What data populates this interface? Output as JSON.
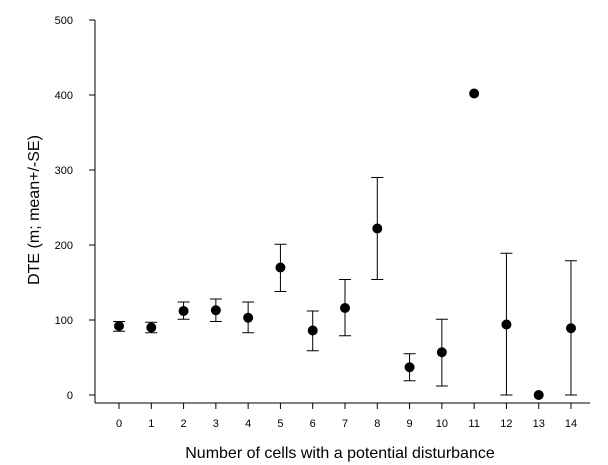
{
  "chart_data": {
    "type": "scatter",
    "title": "",
    "xlabel": "Number of cells with a potential disturbance",
    "ylabel": "DTE (m; mean+/-SE)",
    "xlim": [
      -1,
      15
    ],
    "ylim": [
      0,
      500
    ],
    "x_ticks": [
      0,
      1,
      2,
      3,
      4,
      5,
      6,
      7,
      8,
      9,
      10,
      11,
      12,
      13,
      14
    ],
    "y_ticks": [
      0,
      100,
      200,
      300,
      400,
      500
    ],
    "grid": false,
    "legend": "none",
    "marker_color": "#000000",
    "series": [
      {
        "x": [
          0,
          1,
          2,
          3,
          4,
          5,
          6,
          7,
          8,
          9,
          10,
          11,
          12,
          13,
          14
        ],
        "y": [
          92,
          90,
          112,
          113,
          103,
          170,
          86,
          116,
          222,
          37,
          57,
          402,
          94,
          0,
          89
        ],
        "y_lower": [
          85,
          83,
          101,
          98,
          83,
          138,
          59,
          79,
          154,
          19,
          12,
          null,
          0,
          null,
          0
        ],
        "y_upper": [
          98,
          97,
          124,
          128,
          124,
          201,
          112,
          154,
          290,
          55,
          101,
          null,
          189,
          null,
          179
        ]
      }
    ]
  }
}
